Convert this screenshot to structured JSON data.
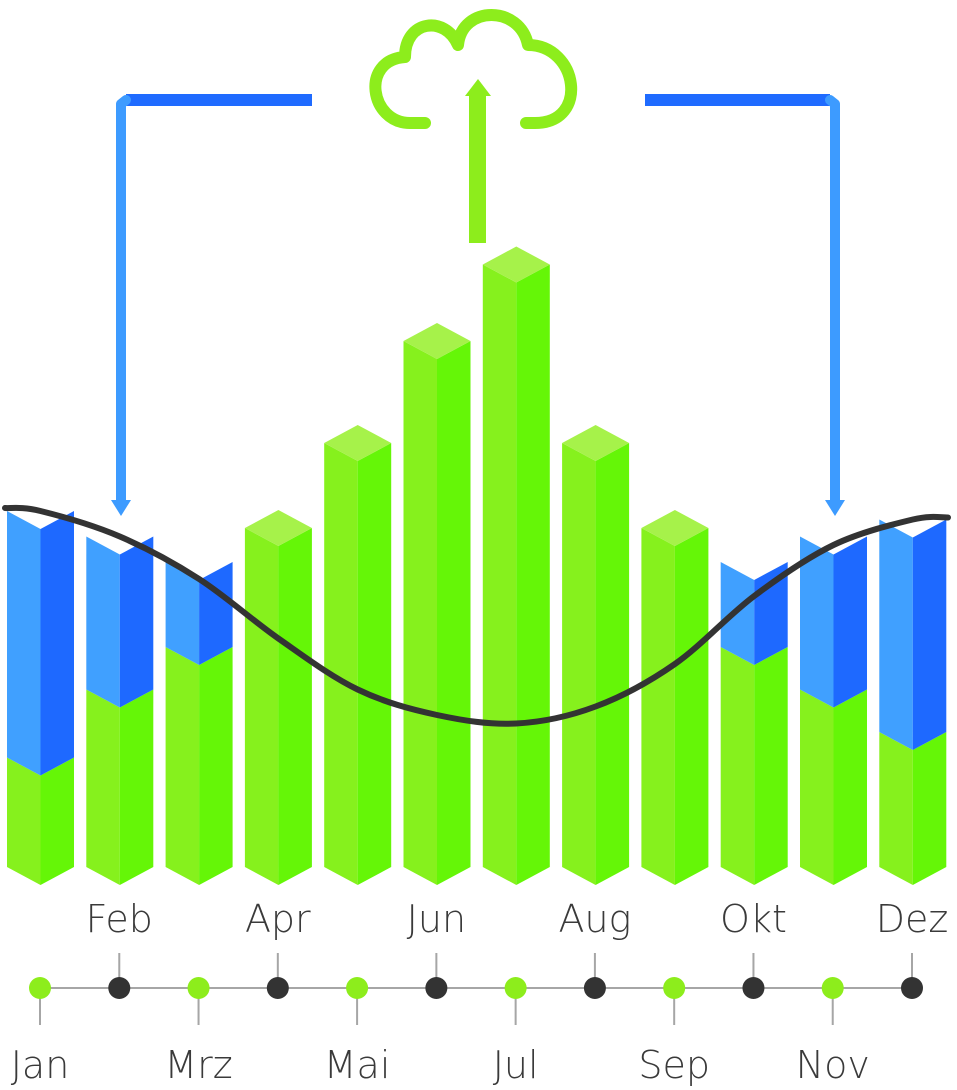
{
  "chart_data": {
    "type": "bar",
    "categories": [
      "Jan",
      "Feb",
      "Mrz",
      "Apr",
      "Mai",
      "Jun",
      "Jul",
      "Aug",
      "Sep",
      "Okt",
      "Nov",
      "Dez"
    ],
    "series": [
      {
        "values": [
          1.5,
          2.3,
          2.8,
          4.2,
          5.2,
          6.4,
          7.3,
          5.2,
          4.2,
          2.8,
          2.3,
          1.8
        ]
      },
      {
        "values": [
          2.9,
          1.8,
          1.0,
          0,
          0,
          0,
          0,
          0,
          0,
          1.0,
          1.8,
          2.5
        ]
      }
    ],
    "demand_curve": [
      4.4,
      4.1,
      3.6,
      2.9,
      2.3,
      2.0,
      1.9,
      2.1,
      2.6,
      3.4,
      4.0,
      4.3
    ],
    "labels_top": [
      "Feb",
      "Apr",
      "Jun",
      "Aug",
      "Okt",
      "Dez"
    ],
    "labels_bottom": [
      "Jan",
      "Mrz",
      "Mai",
      "Jul",
      "Sep",
      "Nov"
    ],
    "ylim": [
      0,
      8
    ],
    "colors": {
      "green_light": "#86f11d",
      "green_dark": "#65f607",
      "green_top": "#a6f24a",
      "blue_light": "#40a0ff",
      "blue_dark": "#1e69ff",
      "curve": "#333333",
      "arrow_blue": "#3d9bff",
      "bracket_blue": "#1f6bff",
      "cloud_green": "#8ded1c",
      "dot_green": "#8ded1c",
      "dot_dark": "#333333",
      "axis": "#a6a6a6",
      "label": "#3a3a3a"
    }
  }
}
